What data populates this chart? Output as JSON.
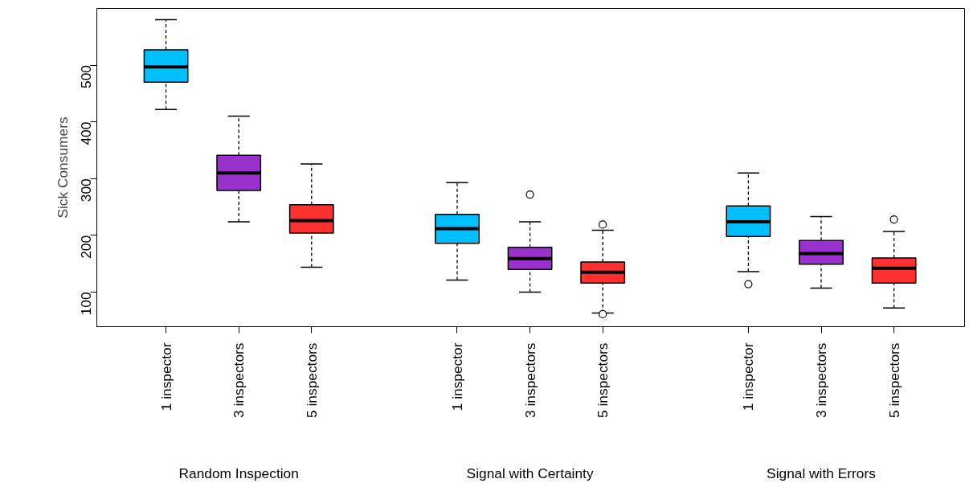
{
  "chart_data": {
    "type": "box",
    "ylabel": "Sick Consumers",
    "categories": [
      "1 inspector",
      "3 inspectors",
      "5 inspectors",
      "1 inspector",
      "3 inspectors",
      "5 inspectors",
      "1 inspector",
      "3 inspectors",
      "5 inspectors"
    ],
    "ylim": [
      39,
      600
    ],
    "yticks": [
      100,
      200,
      300,
      400,
      500
    ],
    "grid": false,
    "colors": [
      "#00bfff",
      "#9932cc",
      "#ff3030",
      "#00bfff",
      "#9932cc",
      "#ff3030",
      "#00bfff",
      "#9932cc",
      "#ff3030"
    ],
    "annotations": [
      "Random Inspection",
      "Signal with Certainty",
      "Signal with Errors"
    ],
    "boxes": [
      {
        "low": 422,
        "q1": 470,
        "median": 497,
        "q3": 527,
        "high": 580
      },
      {
        "low": 224,
        "q1": 279,
        "median": 310,
        "q3": 341,
        "high": 410
      },
      {
        "low": 144,
        "q1": 204,
        "median": 226,
        "q3": 254,
        "high": 326
      },
      {
        "low": 121,
        "q1": 186,
        "median": 212,
        "q3": 237,
        "high": 293
      },
      {
        "low": 100,
        "q1": 140,
        "median": 159,
        "q3": 179,
        "high": 224,
        "outliers": [
          272
        ]
      },
      {
        "low": 63,
        "q1": 116,
        "median": 135,
        "q3": 153,
        "high": 209,
        "outliers": [
          219,
          61
        ]
      },
      {
        "low": 136,
        "q1": 198,
        "median": 224,
        "q3": 252,
        "high": 310,
        "outliers": [
          114
        ]
      },
      {
        "low": 107,
        "q1": 149,
        "median": 168,
        "q3": 191,
        "high": 233
      },
      {
        "low": 72,
        "q1": 116,
        "median": 142,
        "q3": 160,
        "high": 207,
        "outliers": [
          228
        ]
      }
    ]
  }
}
